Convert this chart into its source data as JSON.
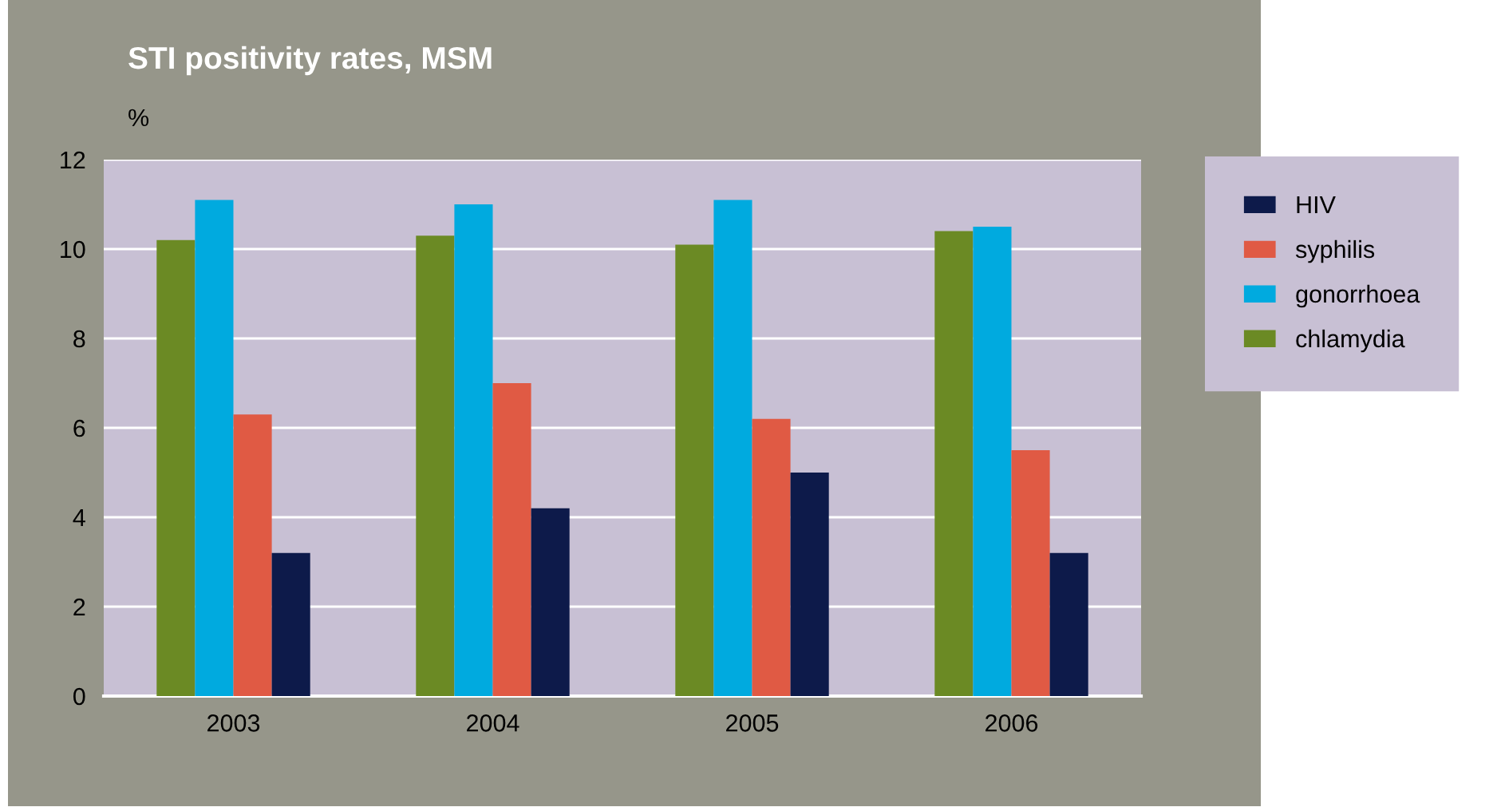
{
  "chart_data": {
    "type": "bar",
    "title": "STI positivity rates, MSM",
    "ylabel": "%",
    "categories": [
      "2003",
      "2004",
      "2005",
      "2006"
    ],
    "series": [
      {
        "name": "chlamydia",
        "color": "#6b8a24",
        "values": [
          10.2,
          10.3,
          10.1,
          10.4
        ]
      },
      {
        "name": "gonorrhoea",
        "color": "#00aadf",
        "values": [
          11.1,
          11.0,
          11.1,
          10.5
        ]
      },
      {
        "name": "syphilis",
        "color": "#e05a44",
        "values": [
          6.3,
          7.0,
          6.2,
          5.5
        ]
      },
      {
        "name": "HIV",
        "color": "#0d1a4a",
        "values": [
          3.2,
          4.2,
          5.0,
          3.2
        ]
      }
    ],
    "ylim": [
      0,
      12
    ],
    "yticks": [
      0,
      2,
      4,
      6,
      8,
      10,
      12
    ],
    "grid": "y",
    "legend": "right"
  }
}
